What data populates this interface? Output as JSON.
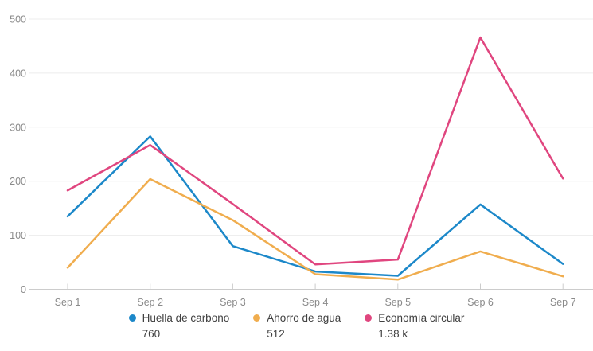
{
  "chart_data": {
    "type": "line",
    "title": "",
    "xlabel": "",
    "ylabel": "",
    "categories": [
      "Sep 1",
      "Sep 2",
      "Sep 3",
      "Sep 4",
      "Sep 5",
      "Sep 6",
      "Sep 7"
    ],
    "series": [
      {
        "name": "Huella de carbono",
        "color": "#1c88c9",
        "values": [
          135,
          283,
          80,
          33,
          25,
          157,
          47
        ],
        "legend_value": "760"
      },
      {
        "name": "Ahorro de agua",
        "color": "#f0ad4e",
        "values": [
          40,
          204,
          128,
          28,
          18,
          70,
          24
        ],
        "legend_value": "512"
      },
      {
        "name": "Economía circular",
        "color": "#e0467f",
        "values": [
          183,
          267,
          158,
          46,
          55,
          466,
          205
        ],
        "legend_value": "1.38 k"
      }
    ],
    "ylim": [
      0,
      500
    ],
    "yticks": [
      0,
      100,
      200,
      300,
      400,
      500
    ],
    "grid": true,
    "legend_position": "bottom",
    "colors": {
      "gridline": "#ececec",
      "axis_line": "#cccccc",
      "axis_text": "#8a8a8a",
      "legend_text": "#404040",
      "background": "#ffffff"
    }
  }
}
